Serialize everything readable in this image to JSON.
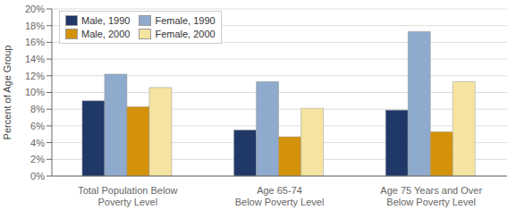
{
  "chart_data": {
    "type": "bar",
    "categories": [
      "Total Population Below\nPoverty Level",
      "Age 65-74\nBelow Poverty Level",
      "Age 75 Years and Over\nBelow Poverty Level"
    ],
    "series": [
      {
        "name": "Male, 1990",
        "color": "#1f3868",
        "values": [
          9.0,
          5.5,
          7.9
        ]
      },
      {
        "name": "Female, 1990",
        "color": "#8eaacc",
        "values": [
          12.2,
          11.3,
          17.3
        ]
      },
      {
        "name": "Male, 2000",
        "color": "#d4920a",
        "values": [
          8.3,
          4.7,
          5.3
        ]
      },
      {
        "name": "Female, 2000",
        "color": "#f5e4a0",
        "values": [
          10.6,
          8.1,
          11.3
        ]
      }
    ],
    "ylabel": "Percent of Age Group",
    "ylim": [
      0,
      20
    ],
    "yticks": [
      {
        "value": 0,
        "label": "0%"
      },
      {
        "value": 2,
        "label": "2%"
      },
      {
        "value": 4,
        "label": "4%"
      },
      {
        "value": 6,
        "label": "6%"
      },
      {
        "value": 8,
        "label": "8%"
      },
      {
        "value": 10,
        "label": "10%"
      },
      {
        "value": 12,
        "label": "12%"
      },
      {
        "value": 14,
        "label": "14%"
      },
      {
        "value": 16,
        "label": "16%"
      },
      {
        "value": 18,
        "label": "18%"
      },
      {
        "value": 20,
        "label": "20%"
      }
    ],
    "grid": true,
    "legend": "upper left"
  }
}
